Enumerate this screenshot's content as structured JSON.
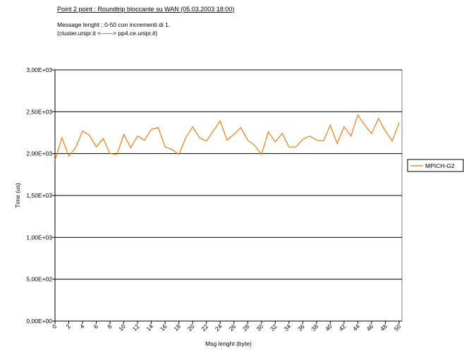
{
  "chart_data": {
    "type": "line",
    "title": "Point 2 point : Roundtrip bloccante su WAN (05.03.2003 18:00)",
    "subtitle": [
      "Message lenght :  0-50 con incrementi di 1.",
      "(cluster.unipr.it   <------>  pp4.ce.unipr.it)"
    ],
    "x_label": "Msg lenght (byte)",
    "y_label": "Time (us)",
    "x": [
      0,
      1,
      2,
      3,
      4,
      5,
      6,
      7,
      8,
      9,
      10,
      11,
      12,
      13,
      14,
      15,
      16,
      17,
      18,
      19,
      20,
      21,
      22,
      23,
      24,
      25,
      26,
      27,
      28,
      29,
      30,
      31,
      32,
      33,
      34,
      35,
      36,
      37,
      38,
      39,
      40,
      41,
      42,
      43,
      44,
      45,
      46,
      47,
      48,
      49,
      50
    ],
    "series": [
      {
        "name": "MPICH-G2",
        "color": "#f07a10",
        "values": [
          1920,
          2190,
          1970,
          2070,
          2270,
          2220,
          2080,
          2180,
          2000,
          1990,
          2230,
          2070,
          2210,
          2160,
          2290,
          2310,
          2080,
          2050,
          1990,
          2190,
          2320,
          2190,
          2150,
          2270,
          2390,
          2160,
          2230,
          2310,
          2160,
          2100,
          1990,
          2260,
          2140,
          2240,
          2080,
          2080,
          2170,
          2210,
          2160,
          2150,
          2340,
          2120,
          2320,
          2210,
          2460,
          2340,
          2240,
          2420,
          2270,
          2150,
          2370
        ]
      }
    ],
    "xlim": [
      0,
      50
    ],
    "xticks": [
      0,
      2,
      4,
      6,
      8,
      10,
      12,
      14,
      16,
      18,
      20,
      22,
      24,
      26,
      28,
      30,
      32,
      34,
      36,
      38,
      40,
      42,
      44,
      46,
      48,
      50
    ],
    "ylim": [
      0,
      3000
    ],
    "yticks": [
      {
        "value": 0,
        "label": "0,00E+00"
      },
      {
        "value": 500,
        "label": "5,00E+02"
      },
      {
        "value": 1000,
        "label": "1,00E+03"
      },
      {
        "value": 1500,
        "label": "1,50E+03"
      },
      {
        "value": 2000,
        "label": "2,00E+03"
      },
      {
        "value": 2500,
        "label": "2,50E+03"
      },
      {
        "value": 3000,
        "label": "3,00E+03"
      }
    ],
    "grid": true,
    "legend": "right"
  }
}
